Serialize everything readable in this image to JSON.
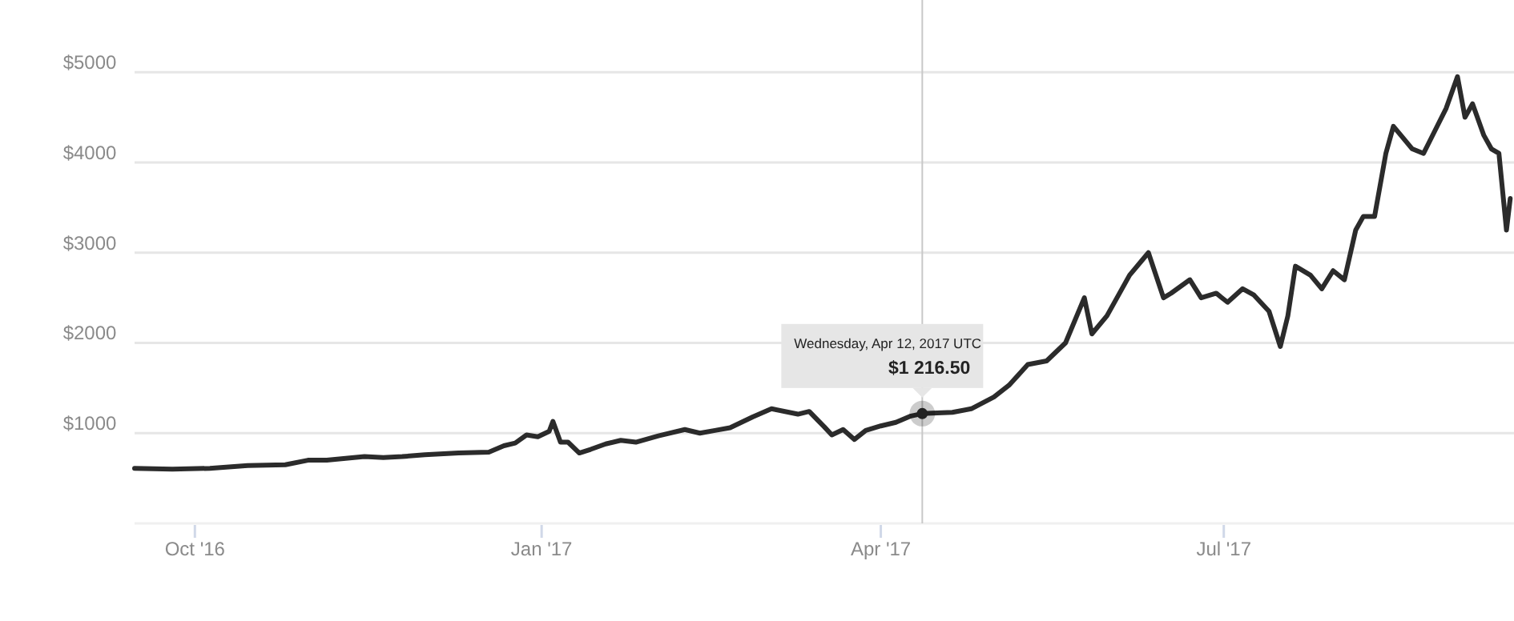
{
  "chart_data": {
    "type": "line",
    "x": [
      "2016-09-15",
      "2016-09-25",
      "2016-10-05",
      "2016-10-15",
      "2016-10-25",
      "2016-10-31",
      "2016-11-05",
      "2016-11-10",
      "2016-11-15",
      "2016-11-20",
      "2016-11-25",
      "2016-12-01",
      "2016-12-10",
      "2016-12-18",
      "2016-12-22",
      "2016-12-25",
      "2016-12-28",
      "2016-12-31",
      "2017-01-03",
      "2017-01-04",
      "2017-01-06",
      "2017-01-08",
      "2017-01-11",
      "2017-01-14",
      "2017-01-18",
      "2017-01-22",
      "2017-01-26",
      "2017-02-01",
      "2017-02-08",
      "2017-02-12",
      "2017-02-16",
      "2017-02-20",
      "2017-02-26",
      "2017-03-03",
      "2017-03-10",
      "2017-03-13",
      "2017-03-17",
      "2017-03-19",
      "2017-03-22",
      "2017-03-25",
      "2017-03-28",
      "2017-04-01",
      "2017-04-05",
      "2017-04-09",
      "2017-04-12",
      "2017-04-20",
      "2017-04-25",
      "2017-05-01",
      "2017-05-05",
      "2017-05-10",
      "2017-05-15",
      "2017-05-20",
      "2017-05-25",
      "2017-05-27",
      "2017-05-31",
      "2017-06-06",
      "2017-06-09",
      "2017-06-11",
      "2017-06-15",
      "2017-06-17",
      "2017-06-22",
      "2017-06-25",
      "2017-06-29",
      "2017-07-02",
      "2017-07-06",
      "2017-07-09",
      "2017-07-13",
      "2017-07-16",
      "2017-07-18",
      "2017-07-20",
      "2017-07-24",
      "2017-07-27",
      "2017-07-30",
      "2017-08-02",
      "2017-08-05",
      "2017-08-07",
      "2017-08-10",
      "2017-08-13",
      "2017-08-15",
      "2017-08-17",
      "2017-08-20",
      "2017-08-23",
      "2017-08-26",
      "2017-08-29",
      "2017-09-01",
      "2017-09-03",
      "2017-09-05",
      "2017-09-08",
      "2017-09-10",
      "2017-09-12",
      "2017-09-14",
      "2017-09-15"
    ],
    "series": [
      {
        "color": "#2b2b2b",
        "values": [
          610,
          600,
          610,
          640,
          650,
          700,
          700,
          720,
          740,
          730,
          740,
          760,
          780,
          790,
          860,
          890,
          980,
          960,
          1020,
          1130,
          900,
          900,
          780,
          820,
          880,
          920,
          900,
          970,
          1040,
          1000,
          1030,
          1060,
          1180,
          1270,
          1210,
          1240,
          1070,
          980,
          1040,
          930,
          1030,
          1080,
          1120,
          1190,
          1216.5,
          1230,
          1270,
          1400,
          1530,
          1760,
          1800,
          2000,
          2500,
          2100,
          2300,
          2750,
          2900,
          3000,
          2500,
          2550,
          2700,
          2500,
          2550,
          2450,
          2600,
          2530,
          2350,
          1960,
          2300,
          2850,
          2750,
          2600,
          2800,
          2700,
          3250,
          3400,
          3400,
          4100,
          4400,
          4300,
          4150,
          4100,
          4350,
          4600,
          4950,
          4500,
          4650,
          4300,
          4150,
          4100,
          3250,
          3600
        ]
      }
    ],
    "xlim": [
      "2016-09-15",
      "2017-09-16"
    ],
    "xticks": [
      {
        "value": "2016-10-01",
        "label": "Oct '16"
      },
      {
        "value": "2017-01-01",
        "label": "Jan '17"
      },
      {
        "value": "2017-04-01",
        "label": "Apr '17"
      },
      {
        "value": "2017-07-01",
        "label": "Jul '17"
      }
    ],
    "ylim": [
      0,
      5800
    ],
    "yticks": [
      {
        "value": 1000,
        "label": "$1000"
      },
      {
        "value": 2000,
        "label": "$2000"
      },
      {
        "value": 3000,
        "label": "$3000"
      },
      {
        "value": 4000,
        "label": "$4000"
      },
      {
        "value": 5000,
        "label": "$5000"
      }
    ],
    "grid": "y",
    "marker": "none",
    "line_style": "solid",
    "ref_lines": [
      {
        "axis": "x",
        "value": "2017-04-12",
        "color": "#c8c8c8"
      }
    ],
    "annotations": [
      {
        "text": "Wednesday, Apr 12, 2017 UTC\n$1 216.50",
        "x": "2017-04-12",
        "y": 1216.5
      }
    ]
  }
}
